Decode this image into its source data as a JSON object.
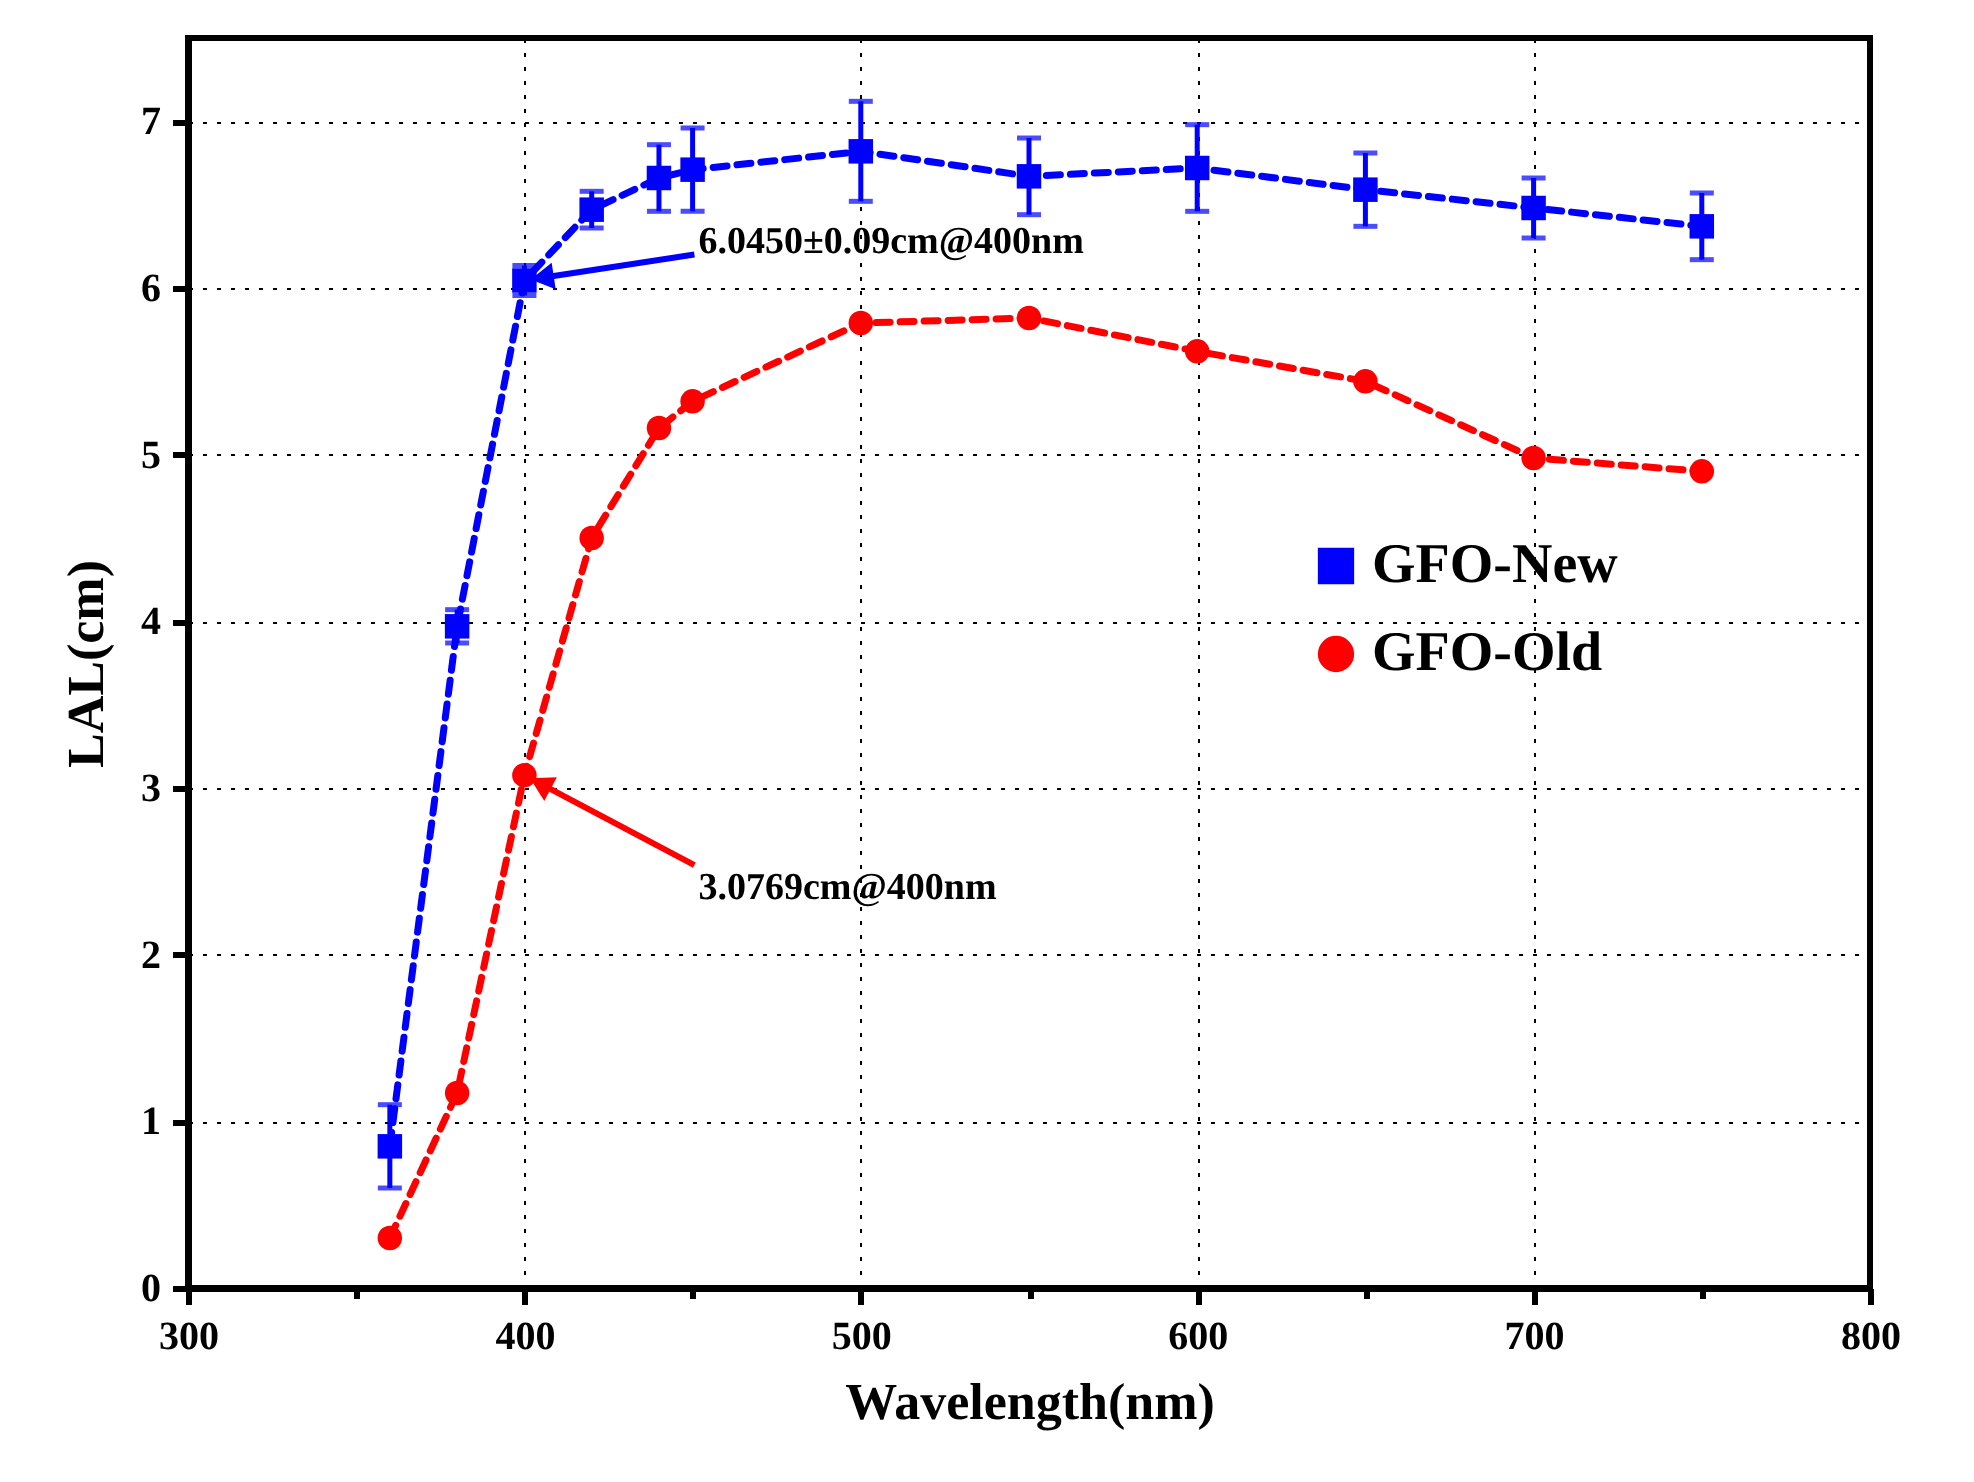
{
  "chart_data": {
    "type": "line",
    "xlabel": "Wavelength(nm)",
    "ylabel": "LAL(cm)",
    "xlim": [
      300,
      800
    ],
    "xticks": [
      300,
      {
        "value": 350,
        "label": null
      },
      400,
      {
        "value": 450,
        "label": null
      },
      500,
      {
        "value": 550,
        "label": null
      },
      600,
      {
        "value": 650,
        "label": null
      },
      700,
      {
        "value": 750,
        "label": null
      },
      800
    ],
    "ylim": [
      0,
      7.5
    ],
    "yticks": [
      0,
      1,
      2,
      3,
      4,
      5,
      6,
      7
    ],
    "grid": true,
    "legend": "right",
    "line_style": "dashed",
    "series": [
      {
        "name": "GFO-New",
        "color": "#0000ff",
        "marker": "square",
        "x": [
          360,
          380,
          400,
          420,
          440,
          450,
          500,
          550,
          600,
          650,
          700,
          750
        ],
        "values": [
          0.85,
          3.97,
          6.045,
          6.47,
          6.66,
          6.71,
          6.82,
          6.67,
          6.72,
          6.59,
          6.48,
          6.37
        ],
        "errors": [
          0.25,
          0.1,
          0.09,
          0.11,
          0.2,
          0.25,
          0.3,
          0.23,
          0.26,
          0.22,
          0.18,
          0.2
        ]
      },
      {
        "name": "GFO-Old",
        "color": "#ff0000",
        "marker": "circle",
        "x": [
          360,
          380,
          400,
          420,
          440,
          450,
          500,
          550,
          600,
          650,
          700,
          750
        ],
        "values": [
          0.3,
          1.17,
          3.0769,
          4.5,
          5.16,
          5.32,
          5.79,
          5.82,
          5.62,
          5.44,
          4.98,
          4.9
        ]
      }
    ],
    "annotations": [
      {
        "text": "6.0450±0.09cm@400nm",
        "x": 400,
        "y": 6.045
      },
      {
        "text": "3.0769cm@400nm",
        "x": 400,
        "y": 3.0769
      }
    ]
  }
}
